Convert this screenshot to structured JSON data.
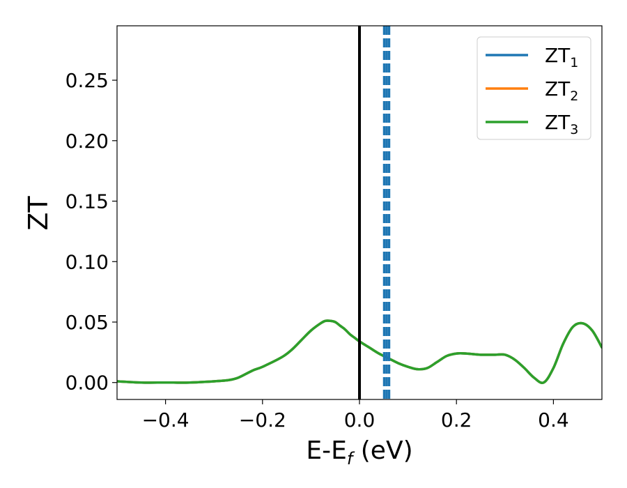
{
  "chart_data": {
    "type": "line",
    "title": "",
    "xlabel": "E-E",
    "xlabel_sub": "f",
    "xlabel_unit": " (eV)",
    "ylabel": "ZT",
    "xlim": [
      -0.5,
      0.5
    ],
    "ylim": [
      -0.014,
      0.295
    ],
    "xticks": [
      -0.4,
      -0.2,
      0.0,
      0.2,
      0.4
    ],
    "xtick_labels": [
      "−0.4",
      "−0.2",
      "0.0",
      "0.2",
      "0.4"
    ],
    "yticks": [
      0.0,
      0.05,
      0.1,
      0.15,
      0.2,
      0.25
    ],
    "ytick_labels": [
      "0.00",
      "0.05",
      "0.10",
      "0.15",
      "0.20",
      "0.25"
    ],
    "grid": false,
    "legend_position": "top-right",
    "x": [
      -0.5,
      -0.45,
      -0.4,
      -0.35,
      -0.3,
      -0.27,
      -0.25,
      -0.22,
      -0.2,
      -0.16,
      -0.14,
      -0.12,
      -0.1,
      -0.08,
      -0.07,
      -0.06,
      -0.05,
      -0.04,
      -0.03,
      -0.02,
      -0.01,
      0.0,
      0.02,
      0.04,
      0.06,
      0.08,
      0.1,
      0.12,
      0.14,
      0.16,
      0.18,
      0.2,
      0.22,
      0.25,
      0.28,
      0.3,
      0.32,
      0.34,
      0.36,
      0.38,
      0.4,
      0.42,
      0.44,
      0.46,
      0.48,
      0.5
    ],
    "series": [
      {
        "name": "ZT",
        "sub": "1",
        "color": "#1f77b4",
        "values": [
          0.001,
          0.0,
          0.0,
          0.0,
          0.001,
          0.002,
          0.004,
          0.01,
          0.013,
          0.021,
          0.027,
          0.035,
          0.043,
          0.049,
          0.051,
          0.051,
          0.05,
          0.047,
          0.044,
          0.04,
          0.037,
          0.034,
          0.029,
          0.024,
          0.02,
          0.016,
          0.013,
          0.011,
          0.012,
          0.017,
          0.022,
          0.024,
          0.024,
          0.023,
          0.023,
          0.023,
          0.019,
          0.012,
          0.004,
          0.0,
          0.012,
          0.032,
          0.046,
          0.049,
          0.043,
          0.029
        ]
      },
      {
        "name": "ZT",
        "sub": "2",
        "color": "#ff7f0e",
        "values": [
          0.001,
          0.0,
          0.0,
          0.0,
          0.001,
          0.002,
          0.004,
          0.01,
          0.013,
          0.021,
          0.027,
          0.035,
          0.043,
          0.049,
          0.051,
          0.051,
          0.05,
          0.047,
          0.044,
          0.04,
          0.037,
          0.034,
          0.029,
          0.024,
          0.02,
          0.016,
          0.013,
          0.011,
          0.012,
          0.017,
          0.022,
          0.024,
          0.024,
          0.023,
          0.023,
          0.023,
          0.019,
          0.012,
          0.004,
          0.0,
          0.012,
          0.032,
          0.046,
          0.049,
          0.043,
          0.029
        ]
      },
      {
        "name": "ZT",
        "sub": "3",
        "color": "#2ca02c",
        "values": [
          0.001,
          0.0,
          0.0,
          0.0,
          0.001,
          0.002,
          0.004,
          0.01,
          0.013,
          0.021,
          0.027,
          0.035,
          0.043,
          0.049,
          0.051,
          0.051,
          0.05,
          0.047,
          0.044,
          0.04,
          0.037,
          0.034,
          0.029,
          0.024,
          0.02,
          0.016,
          0.013,
          0.011,
          0.012,
          0.017,
          0.022,
          0.024,
          0.024,
          0.023,
          0.023,
          0.023,
          0.019,
          0.012,
          0.004,
          0.0,
          0.012,
          0.032,
          0.046,
          0.049,
          0.043,
          0.029
        ]
      }
    ],
    "vlines": [
      {
        "x": 0.0,
        "style": "solid",
        "color": "#000000"
      },
      {
        "x": 0.051,
        "style": "dashed",
        "color": "#1f77b4"
      },
      {
        "x": 0.056,
        "style": "dashed",
        "color": "#1f77b4"
      },
      {
        "x": 0.061,
        "style": "dashed",
        "color": "#1f77b4"
      }
    ]
  }
}
